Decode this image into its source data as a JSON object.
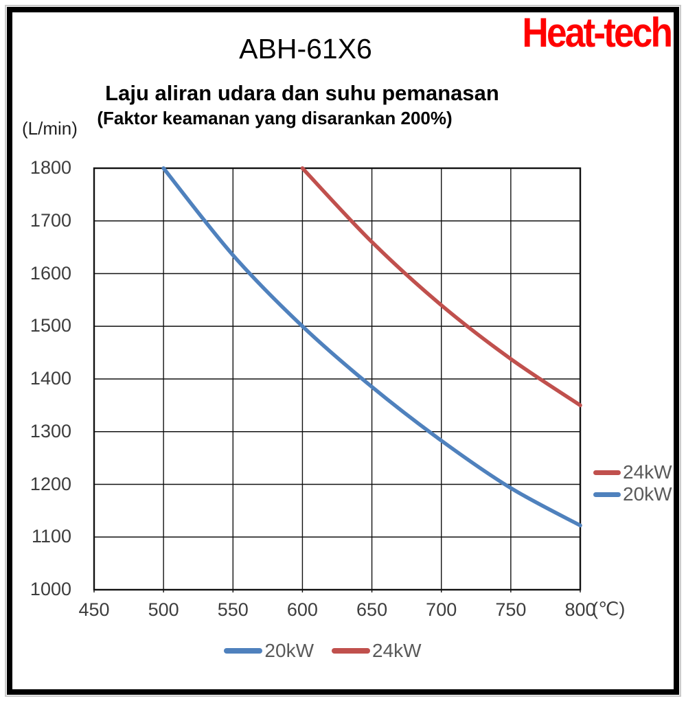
{
  "logo": {
    "text": "Heat-tech",
    "color": "#ff0000"
  },
  "titles": {
    "main": "ABH-61X6",
    "subtitle": "Laju aliran udara dan suhu pemanasan",
    "note": "(Faktor keamanan yang disarankan 200%)"
  },
  "chart_data": {
    "type": "line",
    "title": "ABH-61X6",
    "subtitle": "Laju aliran udara dan suhu pemanasan",
    "note": "(Faktor keamanan yang disarankan 200%)",
    "xlabel": "(℃)",
    "ylabel": "(L/min)",
    "xlim": [
      450,
      800
    ],
    "ylim": [
      1000,
      1800
    ],
    "x_ticks": [
      450,
      500,
      550,
      600,
      650,
      700,
      750,
      800
    ],
    "y_ticks": [
      1800,
      1700,
      1600,
      1500,
      1400,
      1300,
      1200,
      1100,
      1000
    ],
    "grid": true,
    "grid_color": "#111111",
    "series": [
      {
        "name": "20kW",
        "color": "#4F81BD",
        "points": [
          [
            500,
            1800
          ],
          [
            550,
            1635
          ],
          [
            600,
            1500
          ],
          [
            650,
            1385
          ],
          [
            700,
            1283
          ],
          [
            750,
            1193
          ],
          [
            800,
            1122
          ]
        ]
      },
      {
        "name": "24kW",
        "color": "#C0504D",
        "points": [
          [
            600,
            1800
          ],
          [
            650,
            1660
          ],
          [
            700,
            1540
          ],
          [
            750,
            1438
          ],
          [
            800,
            1350
          ]
        ]
      }
    ],
    "legend_right": [
      "24kW",
      "20kW"
    ],
    "legend_bottom": [
      "20kW",
      "24kW"
    ]
  }
}
